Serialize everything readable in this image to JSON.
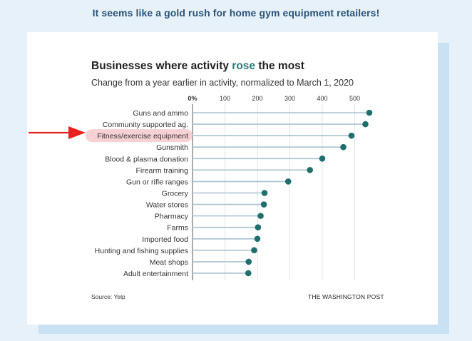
{
  "headline": "It seems like a gold rush for home gym equipment retailers!",
  "chart_data": {
    "type": "dot",
    "title_prefix": "Businesses where activity ",
    "title_highlight": "rose",
    "title_suffix": " the most",
    "subtitle": "Change from a year earlier in activity, normalized to March 1, 2020",
    "x_ticks": [
      "0%",
      "100",
      "200",
      "300",
      "400",
      "500"
    ],
    "x_tick_values": [
      0,
      100,
      200,
      300,
      400,
      500
    ],
    "xlim": [
      0,
      560
    ],
    "categories": [
      "Guns and ammo",
      "Community supported ag.",
      "Fitness/exercise equipment",
      "Gunsmith",
      "Blood & plasma donation",
      "Firearm training",
      "Gun or rifle ranges",
      "Grocery",
      "Water stores",
      "Pharmacy",
      "Farms",
      "Imported food",
      "Hunting and fishing supplies",
      "Meat shops",
      "Adult entertainment"
    ],
    "values": [
      545,
      533,
      490,
      465,
      400,
      362,
      295,
      222,
      220,
      210,
      202,
      200,
      190,
      173,
      172
    ],
    "highlighted_category": "Fitness/exercise equipment",
    "source": "Source: Yelp",
    "credit": "THE WASHINGTON POST"
  },
  "colors": {
    "dot": "#1f6f6c",
    "line": "#a9c2d1",
    "highlight": "#f6c9cd",
    "arrow": "#e8231f"
  }
}
